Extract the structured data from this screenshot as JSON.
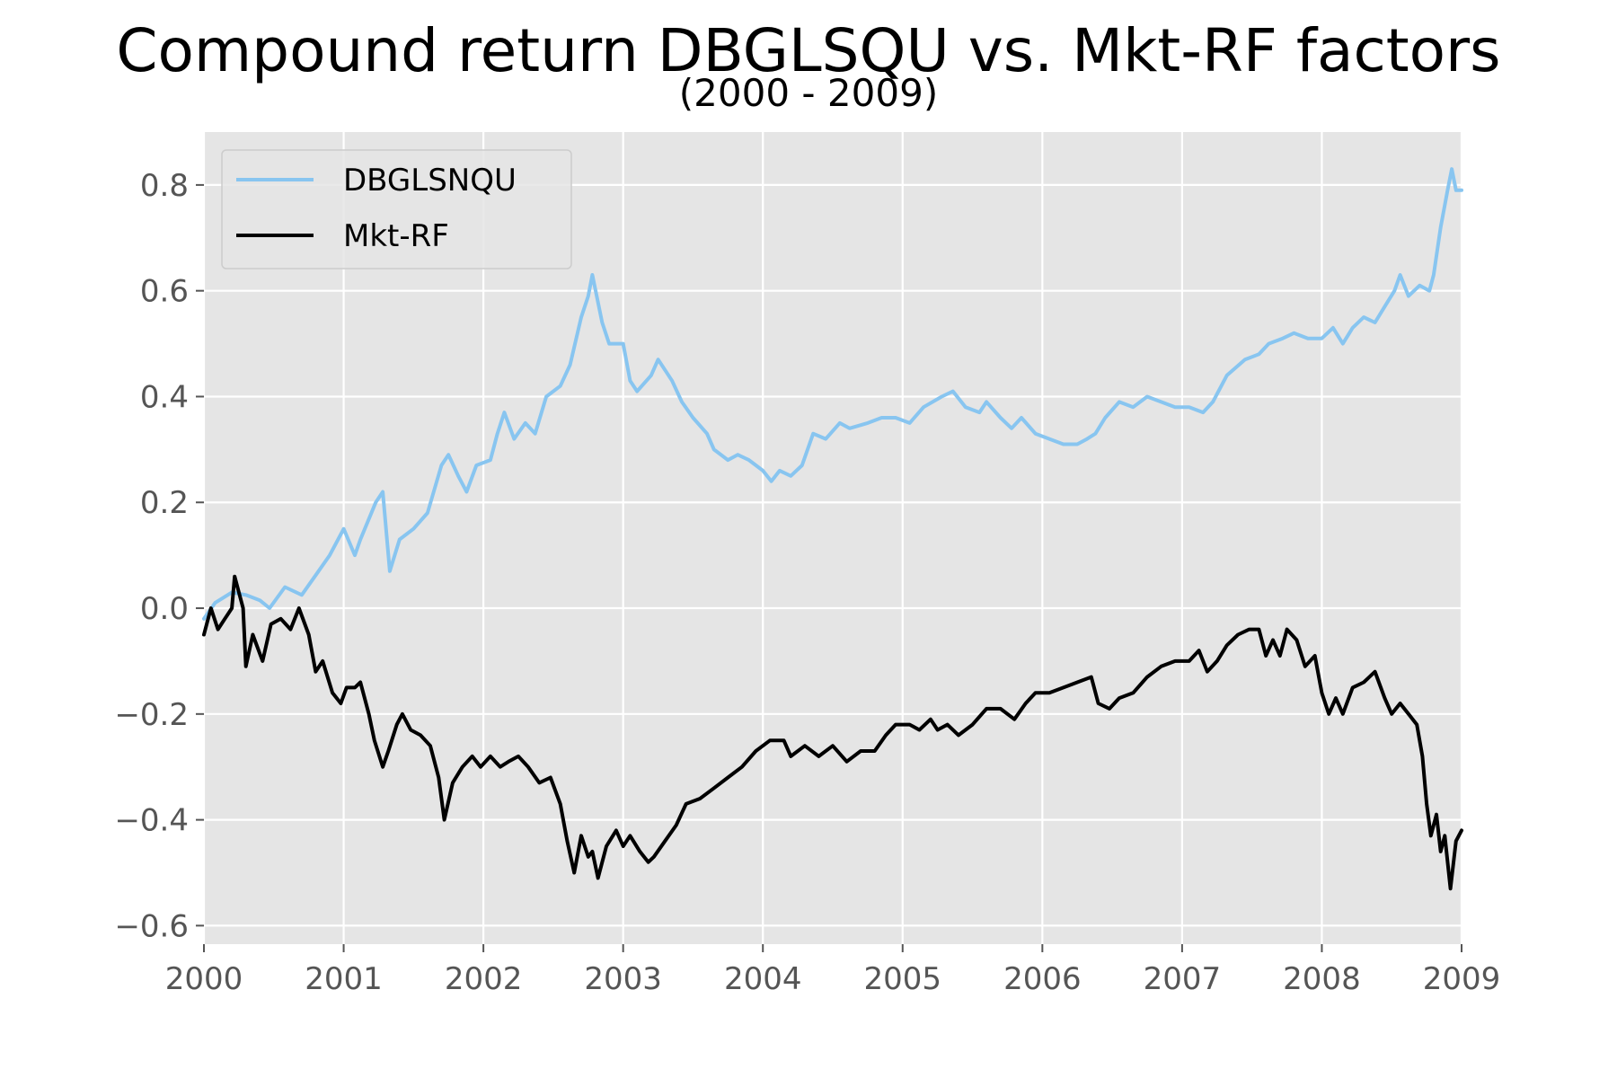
{
  "title": "Compound return DBGLSQU vs. Mkt-RF factors",
  "subtitle": "(2000 - 2009)",
  "colors": {
    "background": "#E5E5E5",
    "grid": "#FFFFFF",
    "DBGLSNQU": "#88C5F0",
    "Mkt-RF": "#000000"
  },
  "chart_data": {
    "type": "line",
    "title": "Compound return DBGLSQU vs. Mkt-RF factors",
    "subtitle": "(2000 - 2009)",
    "xlabel": "",
    "ylabel": "",
    "xlim": [
      2000,
      2009
    ],
    "ylim": [
      -0.635,
      0.9
    ],
    "x_ticks": [
      "2000",
      "2001",
      "2002",
      "2003",
      "2004",
      "2005",
      "2006",
      "2007",
      "2008",
      "2009"
    ],
    "y_ticks": [
      "−0.6",
      "−0.4",
      "−0.2",
      "0.0",
      "0.2",
      "0.4",
      "0.6",
      "0.8"
    ],
    "grid": true,
    "legend": "upper-left",
    "series": [
      {
        "name": "DBGLSNQU",
        "color": "#88C5F0",
        "points": [
          [
            2000.0,
            -0.02
          ],
          [
            2000.08,
            0.01
          ],
          [
            2000.2,
            0.03
          ],
          [
            2000.3,
            0.025
          ],
          [
            2000.4,
            0.015
          ],
          [
            2000.47,
            0.0
          ],
          [
            2000.58,
            0.04
          ],
          [
            2000.7,
            0.025
          ],
          [
            2000.82,
            0.07
          ],
          [
            2000.9,
            0.1
          ],
          [
            2001.0,
            0.15
          ],
          [
            2001.08,
            0.1
          ],
          [
            2001.12,
            0.13
          ],
          [
            2001.23,
            0.2
          ],
          [
            2001.28,
            0.22
          ],
          [
            2001.33,
            0.07
          ],
          [
            2001.4,
            0.13
          ],
          [
            2001.5,
            0.15
          ],
          [
            2001.6,
            0.18
          ],
          [
            2001.7,
            0.27
          ],
          [
            2001.75,
            0.29
          ],
          [
            2001.82,
            0.25
          ],
          [
            2001.88,
            0.22
          ],
          [
            2001.95,
            0.27
          ],
          [
            2002.05,
            0.28
          ],
          [
            2002.1,
            0.33
          ],
          [
            2002.15,
            0.37
          ],
          [
            2002.22,
            0.32
          ],
          [
            2002.3,
            0.35
          ],
          [
            2002.37,
            0.33
          ],
          [
            2002.45,
            0.4
          ],
          [
            2002.55,
            0.42
          ],
          [
            2002.62,
            0.46
          ],
          [
            2002.7,
            0.55
          ],
          [
            2002.75,
            0.59
          ],
          [
            2002.78,
            0.63
          ],
          [
            2002.85,
            0.54
          ],
          [
            2002.9,
            0.5
          ],
          [
            2003.0,
            0.5
          ],
          [
            2003.05,
            0.43
          ],
          [
            2003.1,
            0.41
          ],
          [
            2003.2,
            0.44
          ],
          [
            2003.25,
            0.47
          ],
          [
            2003.35,
            0.43
          ],
          [
            2003.42,
            0.39
          ],
          [
            2003.5,
            0.36
          ],
          [
            2003.6,
            0.33
          ],
          [
            2003.65,
            0.3
          ],
          [
            2003.75,
            0.28
          ],
          [
            2003.82,
            0.29
          ],
          [
            2003.9,
            0.28
          ],
          [
            2004.0,
            0.26
          ],
          [
            2004.06,
            0.24
          ],
          [
            2004.12,
            0.26
          ],
          [
            2004.2,
            0.25
          ],
          [
            2004.28,
            0.27
          ],
          [
            2004.36,
            0.33
          ],
          [
            2004.45,
            0.32
          ],
          [
            2004.55,
            0.35
          ],
          [
            2004.62,
            0.34
          ],
          [
            2004.75,
            0.35
          ],
          [
            2004.85,
            0.36
          ],
          [
            2004.95,
            0.36
          ],
          [
            2005.05,
            0.35
          ],
          [
            2005.15,
            0.38
          ],
          [
            2005.28,
            0.4
          ],
          [
            2005.36,
            0.41
          ],
          [
            2005.45,
            0.38
          ],
          [
            2005.55,
            0.37
          ],
          [
            2005.6,
            0.39
          ],
          [
            2005.7,
            0.36
          ],
          [
            2005.78,
            0.34
          ],
          [
            2005.85,
            0.36
          ],
          [
            2005.95,
            0.33
          ],
          [
            2006.05,
            0.32
          ],
          [
            2006.15,
            0.31
          ],
          [
            2006.25,
            0.31
          ],
          [
            2006.32,
            0.32
          ],
          [
            2006.38,
            0.33
          ],
          [
            2006.45,
            0.36
          ],
          [
            2006.55,
            0.39
          ],
          [
            2006.65,
            0.38
          ],
          [
            2006.75,
            0.4
          ],
          [
            2006.85,
            0.39
          ],
          [
            2006.95,
            0.38
          ],
          [
            2007.05,
            0.38
          ],
          [
            2007.15,
            0.37
          ],
          [
            2007.22,
            0.39
          ],
          [
            2007.32,
            0.44
          ],
          [
            2007.45,
            0.47
          ],
          [
            2007.55,
            0.48
          ],
          [
            2007.62,
            0.5
          ],
          [
            2007.72,
            0.51
          ],
          [
            2007.8,
            0.52
          ],
          [
            2007.9,
            0.51
          ],
          [
            2008.0,
            0.51
          ],
          [
            2008.08,
            0.53
          ],
          [
            2008.15,
            0.5
          ],
          [
            2008.22,
            0.53
          ],
          [
            2008.3,
            0.55
          ],
          [
            2008.38,
            0.54
          ],
          [
            2008.45,
            0.57
          ],
          [
            2008.52,
            0.6
          ],
          [
            2008.56,
            0.63
          ],
          [
            2008.62,
            0.59
          ],
          [
            2008.7,
            0.61
          ],
          [
            2008.77,
            0.6
          ],
          [
            2008.8,
            0.63
          ],
          [
            2008.85,
            0.72
          ],
          [
            2008.9,
            0.79
          ],
          [
            2008.93,
            0.83
          ],
          [
            2008.96,
            0.79
          ],
          [
            2009.0,
            0.79
          ]
        ]
      },
      {
        "name": "Mkt-RF",
        "color": "#000000",
        "points": [
          [
            2000.0,
            -0.05
          ],
          [
            2000.05,
            0.0
          ],
          [
            2000.1,
            -0.04
          ],
          [
            2000.15,
            -0.02
          ],
          [
            2000.2,
            0.0
          ],
          [
            2000.22,
            0.06
          ],
          [
            2000.28,
            0.0
          ],
          [
            2000.3,
            -0.11
          ],
          [
            2000.35,
            -0.05
          ],
          [
            2000.42,
            -0.1
          ],
          [
            2000.48,
            -0.03
          ],
          [
            2000.55,
            -0.02
          ],
          [
            2000.62,
            -0.04
          ],
          [
            2000.68,
            0.0
          ],
          [
            2000.75,
            -0.05
          ],
          [
            2000.8,
            -0.12
          ],
          [
            2000.85,
            -0.1
          ],
          [
            2000.92,
            -0.16
          ],
          [
            2000.98,
            -0.18
          ],
          [
            2001.02,
            -0.15
          ],
          [
            2001.08,
            -0.15
          ],
          [
            2001.12,
            -0.14
          ],
          [
            2001.18,
            -0.2
          ],
          [
            2001.22,
            -0.25
          ],
          [
            2001.28,
            -0.3
          ],
          [
            2001.32,
            -0.27
          ],
          [
            2001.38,
            -0.22
          ],
          [
            2001.42,
            -0.2
          ],
          [
            2001.48,
            -0.23
          ],
          [
            2001.55,
            -0.24
          ],
          [
            2001.62,
            -0.26
          ],
          [
            2001.68,
            -0.32
          ],
          [
            2001.72,
            -0.4
          ],
          [
            2001.78,
            -0.33
          ],
          [
            2001.85,
            -0.3
          ],
          [
            2001.92,
            -0.28
          ],
          [
            2001.98,
            -0.3
          ],
          [
            2002.05,
            -0.28
          ],
          [
            2002.12,
            -0.3
          ],
          [
            2002.18,
            -0.29
          ],
          [
            2002.25,
            -0.28
          ],
          [
            2002.32,
            -0.3
          ],
          [
            2002.4,
            -0.33
          ],
          [
            2002.48,
            -0.32
          ],
          [
            2002.55,
            -0.37
          ],
          [
            2002.6,
            -0.44
          ],
          [
            2002.65,
            -0.5
          ],
          [
            2002.7,
            -0.43
          ],
          [
            2002.75,
            -0.47
          ],
          [
            2002.78,
            -0.46
          ],
          [
            2002.82,
            -0.51
          ],
          [
            2002.88,
            -0.45
          ],
          [
            2002.95,
            -0.42
          ],
          [
            2003.0,
            -0.45
          ],
          [
            2003.05,
            -0.43
          ],
          [
            2003.12,
            -0.46
          ],
          [
            2003.18,
            -0.48
          ],
          [
            2003.22,
            -0.47
          ],
          [
            2003.3,
            -0.44
          ],
          [
            2003.38,
            -0.41
          ],
          [
            2003.45,
            -0.37
          ],
          [
            2003.55,
            -0.36
          ],
          [
            2003.65,
            -0.34
          ],
          [
            2003.75,
            -0.32
          ],
          [
            2003.85,
            -0.3
          ],
          [
            2003.95,
            -0.27
          ],
          [
            2004.05,
            -0.25
          ],
          [
            2004.15,
            -0.25
          ],
          [
            2004.2,
            -0.28
          ],
          [
            2004.3,
            -0.26
          ],
          [
            2004.4,
            -0.28
          ],
          [
            2004.5,
            -0.26
          ],
          [
            2004.6,
            -0.29
          ],
          [
            2004.7,
            -0.27
          ],
          [
            2004.8,
            -0.27
          ],
          [
            2004.88,
            -0.24
          ],
          [
            2004.95,
            -0.22
          ],
          [
            2005.05,
            -0.22
          ],
          [
            2005.12,
            -0.23
          ],
          [
            2005.2,
            -0.21
          ],
          [
            2005.25,
            -0.23
          ],
          [
            2005.32,
            -0.22
          ],
          [
            2005.4,
            -0.24
          ],
          [
            2005.5,
            -0.22
          ],
          [
            2005.6,
            -0.19
          ],
          [
            2005.7,
            -0.19
          ],
          [
            2005.8,
            -0.21
          ],
          [
            2005.88,
            -0.18
          ],
          [
            2005.95,
            -0.16
          ],
          [
            2006.05,
            -0.16
          ],
          [
            2006.15,
            -0.15
          ],
          [
            2006.25,
            -0.14
          ],
          [
            2006.35,
            -0.13
          ],
          [
            2006.4,
            -0.18
          ],
          [
            2006.48,
            -0.19
          ],
          [
            2006.55,
            -0.17
          ],
          [
            2006.65,
            -0.16
          ],
          [
            2006.75,
            -0.13
          ],
          [
            2006.85,
            -0.11
          ],
          [
            2006.95,
            -0.1
          ],
          [
            2007.05,
            -0.1
          ],
          [
            2007.12,
            -0.08
          ],
          [
            2007.18,
            -0.12
          ],
          [
            2007.25,
            -0.1
          ],
          [
            2007.32,
            -0.07
          ],
          [
            2007.4,
            -0.05
          ],
          [
            2007.48,
            -0.04
          ],
          [
            2007.55,
            -0.04
          ],
          [
            2007.6,
            -0.09
          ],
          [
            2007.65,
            -0.06
          ],
          [
            2007.7,
            -0.09
          ],
          [
            2007.75,
            -0.04
          ],
          [
            2007.82,
            -0.06
          ],
          [
            2007.88,
            -0.11
          ],
          [
            2007.95,
            -0.09
          ],
          [
            2008.0,
            -0.16
          ],
          [
            2008.05,
            -0.2
          ],
          [
            2008.1,
            -0.17
          ],
          [
            2008.15,
            -0.2
          ],
          [
            2008.22,
            -0.15
          ],
          [
            2008.3,
            -0.14
          ],
          [
            2008.38,
            -0.12
          ],
          [
            2008.45,
            -0.17
          ],
          [
            2008.5,
            -0.2
          ],
          [
            2008.56,
            -0.18
          ],
          [
            2008.62,
            -0.2
          ],
          [
            2008.68,
            -0.22
          ],
          [
            2008.72,
            -0.28
          ],
          [
            2008.75,
            -0.37
          ],
          [
            2008.78,
            -0.43
          ],
          [
            2008.82,
            -0.39
          ],
          [
            2008.85,
            -0.46
          ],
          [
            2008.88,
            -0.43
          ],
          [
            2008.92,
            -0.53
          ],
          [
            2008.96,
            -0.44
          ],
          [
            2009.0,
            -0.42
          ]
        ]
      }
    ]
  }
}
